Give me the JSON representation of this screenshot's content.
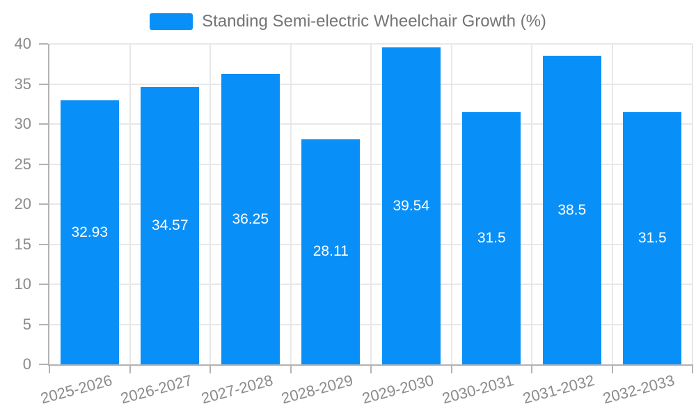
{
  "legend": {
    "items": [
      {
        "label": "Standing Semi-electric Wheelchair Growth (%)",
        "color": "#0990f8"
      }
    ]
  },
  "chart_data": {
    "type": "bar",
    "title": "Standing Semi-electric Wheelchair Growth (%)",
    "categories": [
      "2025-2026",
      "2026-2027",
      "2027-2028",
      "2028-2029",
      "2029-2030",
      "2030-2031",
      "2031-2032",
      "2032-2033"
    ],
    "series": [
      {
        "name": "Standing Semi-electric Wheelchair Growth (%)",
        "values": [
          32.93,
          34.57,
          36.25,
          28.11,
          39.54,
          31.5,
          38.5,
          31.5
        ]
      }
    ],
    "value_labels": [
      "32.93",
      "34.57",
      "36.25",
      "28.11",
      "39.54",
      "31.5",
      "38.5",
      "31.5"
    ],
    "xlabel": "",
    "ylabel": "",
    "ylim": [
      0,
      40
    ],
    "ytick_step": 5,
    "ytick_labels": [
      "0",
      "5",
      "10",
      "15",
      "20",
      "25",
      "30",
      "35",
      "40"
    ],
    "grid": true,
    "legend_position": "top-center",
    "x_label_rotation_deg": -15,
    "value_label_position": "inside-middle",
    "colors": {
      "bar": "#0990f8",
      "grid": "#e8e8e8",
      "axis": "#b3b3b3",
      "tick": "#b3b3b3",
      "axis_text": "#8b8b8b",
      "legend_text": "#747474",
      "value_label_text": "#ffffff",
      "background": "#ffffff"
    }
  }
}
